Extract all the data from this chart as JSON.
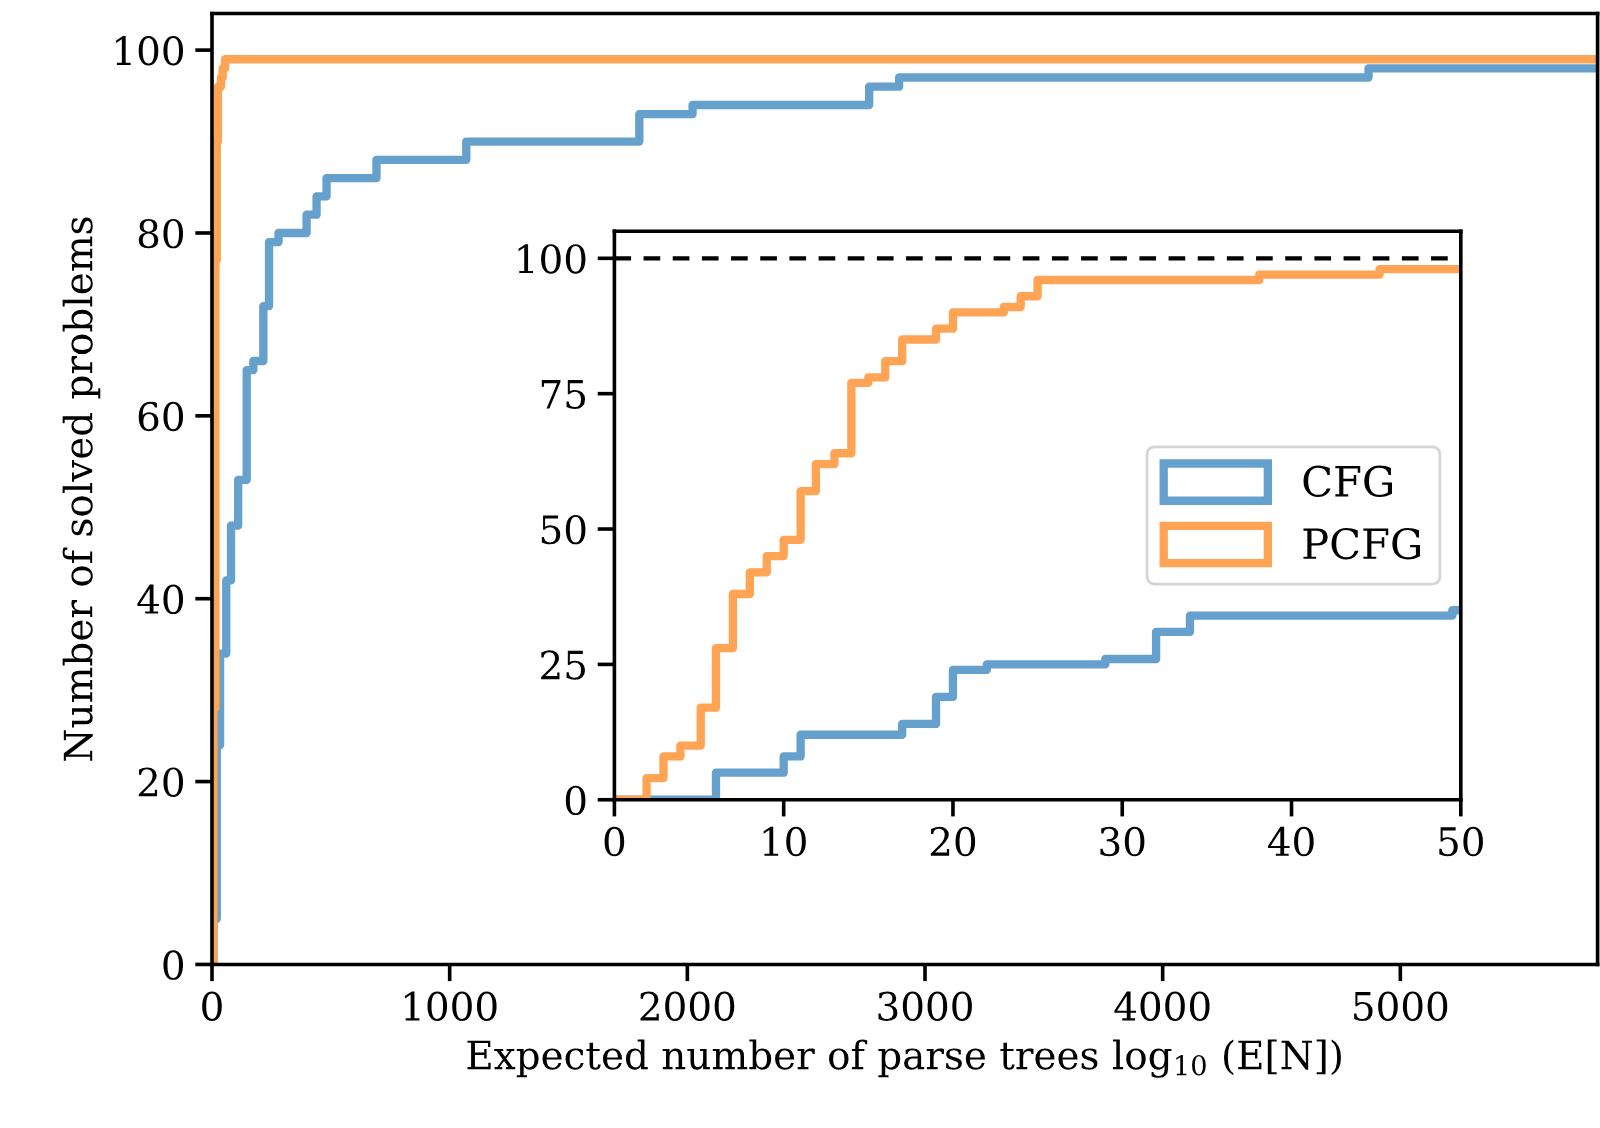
{
  "chart_data": [
    {
      "type": "step",
      "xlabel": "Expected number of parse trees log$_{10}$ (E[N])",
      "ylabel": "Number of solved problems",
      "xlim": [
        0,
        5830
      ],
      "ylim": [
        0,
        104
      ],
      "xticks": [
        0,
        1000,
        2000,
        3000,
        4000,
        5000
      ],
      "yticks": [
        0,
        20,
        40,
        60,
        80,
        100
      ],
      "grid": false,
      "legend": false,
      "series": [
        {
          "color": "#66a0cc",
          "x": [
            0,
            6,
            20,
            34,
            60,
            80,
            110,
            146,
            174,
            216,
            240,
            280,
            398,
            440,
            482,
            692,
            1070,
            1798,
            2022,
            2765,
            2891,
            4866,
            5830
          ],
          "values": [
            0,
            5,
            24,
            34,
            42,
            48,
            53,
            65,
            66,
            72,
            79,
            80,
            82,
            84,
            86,
            88,
            90,
            93,
            94,
            96,
            97,
            98,
            98
          ]
        },
        {
          "color": "#ffa354",
          "x": [
            0,
            6,
            14,
            20,
            25,
            38,
            45,
            55,
            5830
          ],
          "values": [
            0,
            28,
            77,
            90,
            96,
            97,
            98,
            99,
            99
          ]
        }
      ]
    },
    {
      "type": "step",
      "xlim": [
        0,
        50
      ],
      "ylim": [
        0,
        105
      ],
      "xticks": [
        0,
        10,
        20,
        30,
        40,
        50
      ],
      "yticks": [
        0,
        25,
        50,
        75,
        100
      ],
      "grid": false,
      "legend": "center right",
      "ref_lines": [
        {
          "axis": "y",
          "value": 100,
          "color": "#000000",
          "line_style": "dashed"
        }
      ],
      "series": [
        {
          "name": "CFG",
          "color": "#66a0cc",
          "x": [
            0,
            6,
            10,
            11,
            17,
            19,
            20,
            22,
            29,
            32,
            34,
            49.5,
            50
          ],
          "values": [
            0,
            5,
            8,
            12,
            14,
            19,
            24,
            25,
            26,
            31,
            34,
            35,
            35
          ]
        },
        {
          "name": "PCFG",
          "color": "#ffa354",
          "x": [
            0,
            1.9,
            2.9,
            3.9,
            5.1,
            6,
            7,
            8,
            9,
            10,
            11,
            11.9,
            13,
            14,
            15,
            16,
            17,
            19,
            20,
            23,
            24,
            25,
            38.1,
            45.2,
            50
          ],
          "values": [
            0,
            4,
            8,
            10,
            17,
            28,
            38,
            42,
            45,
            48,
            57,
            62,
            64,
            77,
            78,
            81,
            85,
            87,
            90,
            91,
            93,
            96,
            97,
            98,
            98
          ]
        }
      ]
    }
  ]
}
